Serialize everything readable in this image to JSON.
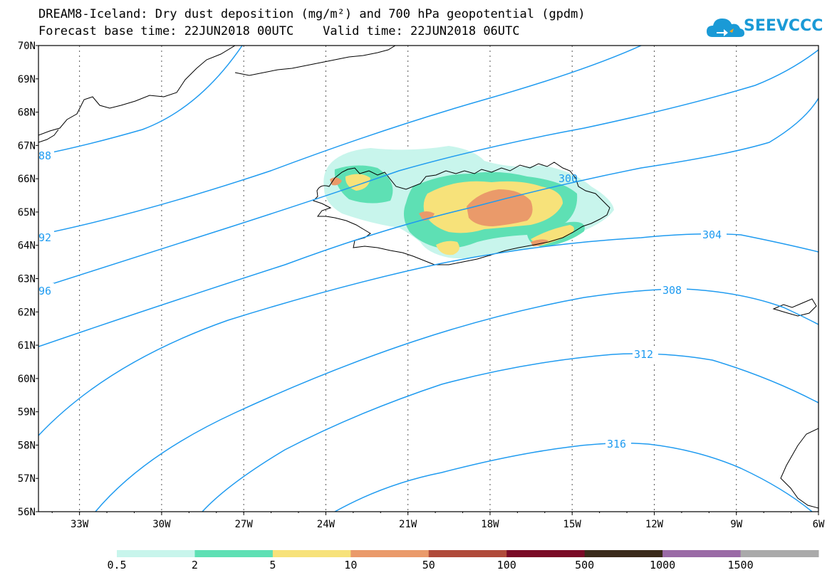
{
  "title": {
    "line1": "DREAM8-Iceland: Dry dust deposition (mg/m²) and 700 hPa geopotential (gpdm)",
    "line2": "Forecast base time: 22JUN2018 00UTC    Valid time: 22JUN2018 06UTC"
  },
  "logo": {
    "text": "SEEVCCC",
    "color": "#1a9ad6"
  },
  "map": {
    "lon_range": [
      -34.5,
      -6
    ],
    "lat_range": [
      56,
      70
    ],
    "lat_ticks": [
      "70N",
      "69N",
      "68N",
      "67N",
      "66N",
      "65N",
      "64N",
      "63N",
      "62N",
      "61N",
      "60N",
      "59N",
      "58N",
      "57N",
      "56N"
    ],
    "lon_ticks": [
      "33W",
      "30W",
      "27W",
      "24W",
      "21W",
      "18W",
      "15W",
      "12W",
      "9W",
      "6W"
    ],
    "contour_color": "#1f9bf0",
    "contour_labels": [
      "88",
      "92",
      "96",
      "300",
      "304",
      "308",
      "312",
      "316"
    ]
  },
  "colorbar": {
    "colors": [
      "#c8f5ec",
      "#5ee0b4",
      "#f7e27a",
      "#ea9a6a",
      "#b04a3a",
      "#7a0a26",
      "#3a2a1a",
      "#9a6aa6",
      "#aaaaaa"
    ],
    "labels": [
      "0.5",
      "2",
      "5",
      "10",
      "50",
      "100",
      "500",
      "1000",
      "1500"
    ]
  }
}
